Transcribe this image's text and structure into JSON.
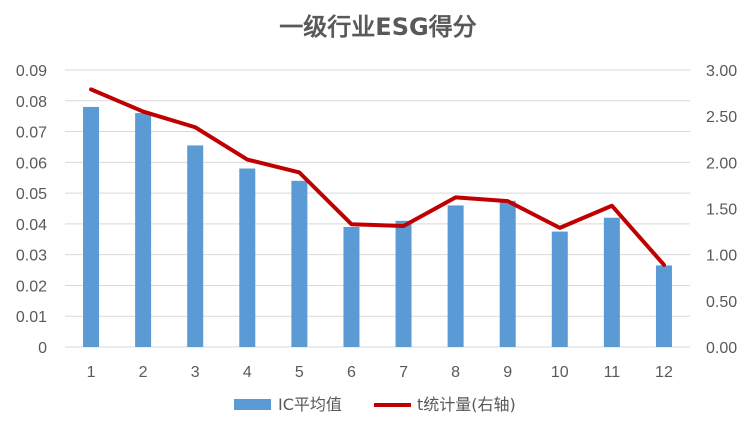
{
  "chart_data": {
    "type": "bar+line",
    "title": "一级行业ESG得分",
    "categories": [
      "1",
      "2",
      "3",
      "4",
      "5",
      "6",
      "7",
      "8",
      "9",
      "10",
      "11",
      "12"
    ],
    "series": [
      {
        "name": "IC平均值",
        "type": "bar",
        "axis": "left",
        "color": "#5b9bd5",
        "values": [
          0.078,
          0.076,
          0.0655,
          0.058,
          0.054,
          0.039,
          0.041,
          0.046,
          0.0475,
          0.0375,
          0.042,
          0.0265
        ]
      },
      {
        "name": "t统计量(右轴)",
        "type": "line",
        "axis": "right",
        "color": "#c00000",
        "values": [
          2.79,
          2.55,
          2.38,
          2.03,
          1.89,
          1.33,
          1.31,
          1.62,
          1.58,
          1.29,
          1.53,
          0.89
        ]
      }
    ],
    "y_left": {
      "min": 0,
      "max": 0.09,
      "ticks": [
        "0",
        "0.01",
        "0.02",
        "0.03",
        "0.04",
        "0.05",
        "0.06",
        "0.07",
        "0.08",
        "0.09"
      ]
    },
    "y_right": {
      "min": 0,
      "max": 3.0,
      "ticks": [
        "0.00",
        "0.50",
        "1.00",
        "1.50",
        "2.00",
        "2.50",
        "3.00"
      ]
    },
    "grid": true,
    "legend_position": "bottom"
  }
}
